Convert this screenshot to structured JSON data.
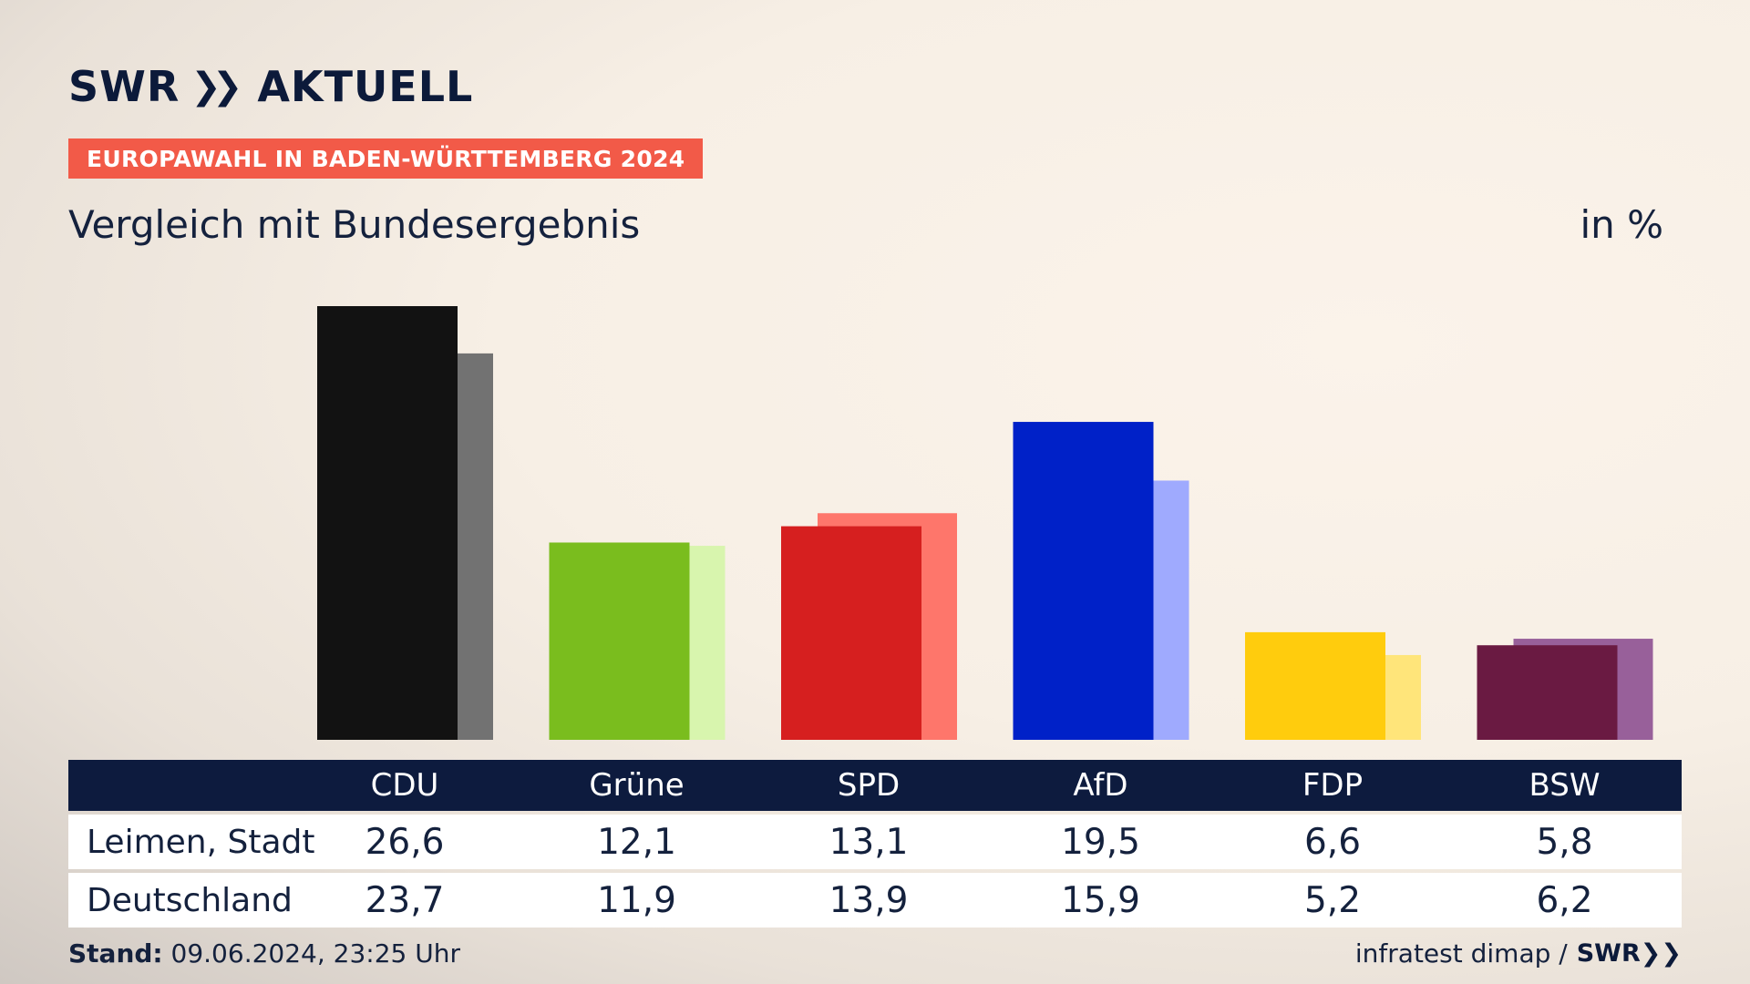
{
  "brand": {
    "logo_text": "SWR",
    "logo_sub": "AKTUELL"
  },
  "badge": "EUROPAWAHL IN BADEN-WÜRTTEMBERG 2024",
  "heading": "Vergleich mit Bundesergebnis",
  "unit": "in %",
  "chart_data": {
    "type": "bar",
    "categories": [
      "CDU",
      "Grüne",
      "SPD",
      "AfD",
      "FDP",
      "BSW"
    ],
    "series": [
      {
        "name": "Leimen, Stadt",
        "values": [
          26.6,
          12.1,
          13.1,
          19.5,
          6.6,
          5.8
        ]
      },
      {
        "name": "Deutschland",
        "values": [
          23.7,
          11.9,
          13.9,
          15.9,
          5.2,
          6.2
        ]
      }
    ],
    "ylim": [
      0,
      26.6
    ],
    "colors_primary": [
      "#121212",
      "#7abd1e",
      "#d61f1f",
      "#0021c8",
      "#ffcc0d",
      "#6a1a42"
    ],
    "colors_secondary": [
      "#727272",
      "#d8f5ae",
      "#fe766b",
      "#9faafe",
      "#ffe57a",
      "#98609a"
    ],
    "grid": false,
    "legend": "table-below"
  },
  "table": {
    "rows": [
      {
        "label": "Leimen, Stadt",
        "values": [
          "26,6",
          "12,1",
          "13,1",
          "19,5",
          "6,6",
          "5,8"
        ]
      },
      {
        "label": "Deutschland",
        "values": [
          "23,7",
          "11,9",
          "13,9",
          "15,9",
          "5,2",
          "6,2"
        ]
      }
    ]
  },
  "footer": {
    "stand_label": "Stand:",
    "stand_value": "09.06.2024, 23:25 Uhr",
    "source": "infratest dimap /",
    "source_brand": "SWR"
  }
}
